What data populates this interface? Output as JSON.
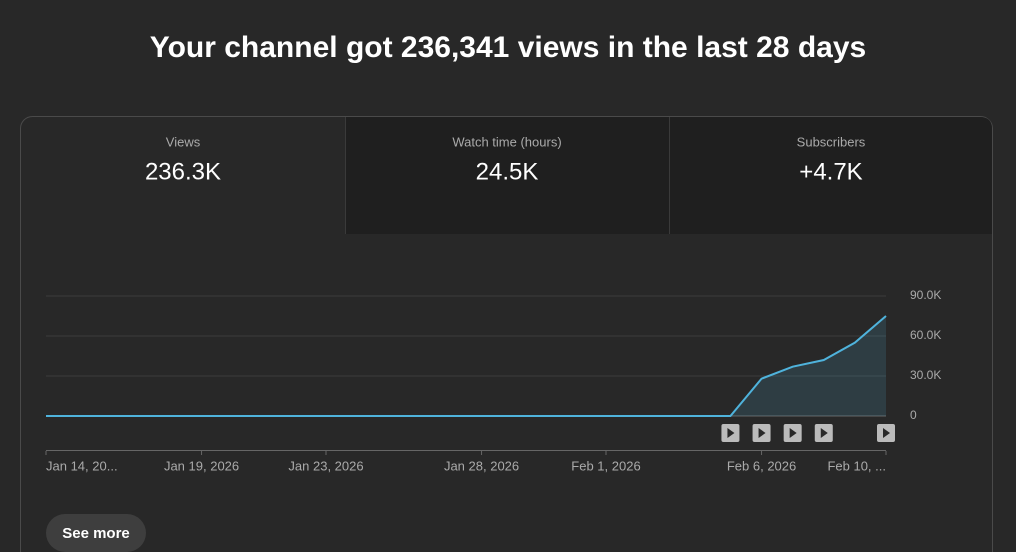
{
  "header": {
    "title": "Your channel got 236,341 views in the last 28 days"
  },
  "tabs": [
    {
      "label": "Views",
      "value": "236.3K"
    },
    {
      "label": "Watch time (hours)",
      "value": "24.5K"
    },
    {
      "label": "Subscribers",
      "value": "+4.7K"
    }
  ],
  "chart_data": {
    "type": "line",
    "categories": [
      "Jan 14, 20...",
      null,
      null,
      null,
      null,
      "Jan 19, 2026",
      null,
      null,
      null,
      "Jan 23, 2026",
      null,
      null,
      null,
      null,
      "Jan 28, 2026",
      null,
      null,
      null,
      "Feb 1, 2026",
      null,
      null,
      null,
      null,
      "Feb 6, 2026",
      null,
      null,
      null,
      "Feb 10, ..."
    ],
    "values": [
      0,
      0,
      0,
      0,
      0,
      0,
      0,
      0,
      0,
      0,
      0,
      0,
      0,
      0,
      0,
      0,
      0,
      0,
      0,
      0,
      0,
      0,
      0,
      28000,
      37000,
      42000,
      55000,
      75000
    ],
    "color": "#4fb3dc",
    "ylim": [
      0,
      90000
    ],
    "yticks": [
      0,
      {
        "value": 30000,
        "label": "30.0K"
      },
      {
        "value": 60000,
        "label": "60.0K"
      },
      {
        "value": 90000,
        "label": "90.0K"
      }
    ],
    "grid": true
  },
  "button": {
    "label": "See more"
  }
}
